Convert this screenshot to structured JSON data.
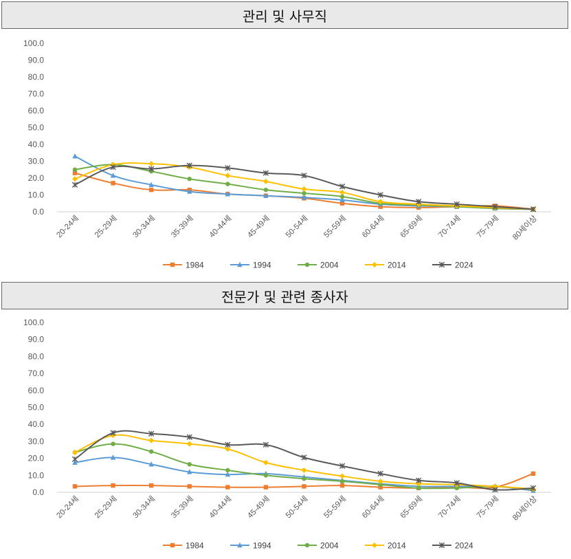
{
  "chart_data": [
    {
      "type": "line",
      "title": "관리 및 사무직",
      "categories": [
        "20-24세",
        "25-29세",
        "30-34세",
        "35-39세",
        "40-44세",
        "45-49세",
        "50-54세",
        "55-59세",
        "60-64세",
        "65-69세",
        "70-74세",
        "75-79세",
        "80세이상"
      ],
      "y_ticks": [
        "0.0",
        "10.0",
        "20.0",
        "30.0",
        "40.0",
        "50.0",
        "60.0",
        "70.0",
        "80.0",
        "90.0",
        "100.0"
      ],
      "ylim": [
        0,
        100
      ],
      "legend_position": "bottom",
      "series": [
        {
          "name": "1984",
          "color": "#ED7D31",
          "marker": "square",
          "values": [
            23,
            17,
            13,
            13,
            10.5,
            9.5,
            8,
            5,
            3,
            2.5,
            3,
            3.5,
            1.5
          ]
        },
        {
          "name": "1994",
          "color": "#5B9BD5",
          "marker": "triangle",
          "values": [
            33,
            21.5,
            16,
            12,
            10.5,
            9.5,
            8.5,
            7,
            4.5,
            3.5,
            3,
            2,
            1.5
          ]
        },
        {
          "name": "2004",
          "color": "#70AD47",
          "marker": "circle",
          "values": [
            25,
            28,
            24,
            19.5,
            16.5,
            13,
            11,
            9,
            5,
            4,
            3,
            2,
            1.5
          ]
        },
        {
          "name": "2014",
          "color": "#FFC000",
          "marker": "diamond",
          "values": [
            19.5,
            28,
            28.5,
            26.5,
            21.5,
            18,
            13.5,
            11.5,
            6,
            4.5,
            3.5,
            2.5,
            1.5
          ]
        },
        {
          "name": "2024",
          "color": "#595959",
          "marker": "star",
          "values": [
            16,
            26.5,
            25.5,
            27.5,
            26,
            23,
            21.5,
            15,
            10,
            6,
            4.5,
            3,
            1.5
          ]
        }
      ]
    },
    {
      "type": "line",
      "title": "전문가 및 관련 종사자",
      "categories": [
        "20-24세",
        "25-29세",
        "30-34세",
        "35-39세",
        "40-44세",
        "45-49세",
        "50-54세",
        "55-59세",
        "60-64세",
        "65-69세",
        "70-74세",
        "75-79세",
        "80세이상"
      ],
      "y_ticks": [
        "0.0",
        "10.0",
        "20.0",
        "30.0",
        "40.0",
        "50.0",
        "60.0",
        "70.0",
        "80.0",
        "90.0",
        "100.0"
      ],
      "ylim": [
        0,
        100
      ],
      "legend_position": "bottom",
      "series": [
        {
          "name": "1984",
          "color": "#ED7D31",
          "marker": "square",
          "values": [
            3.5,
            4,
            4,
            3.5,
            3,
            3,
            3.5,
            4,
            3,
            2.5,
            3,
            3,
            11
          ]
        },
        {
          "name": "1994",
          "color": "#5B9BD5",
          "marker": "triangle",
          "values": [
            17.5,
            20.5,
            16.5,
            12,
            10.5,
            11,
            9,
            7,
            5,
            3.5,
            3.5,
            3.5,
            1
          ]
        },
        {
          "name": "2004",
          "color": "#70AD47",
          "marker": "circle",
          "values": [
            23.5,
            28.5,
            24,
            16.5,
            13,
            10,
            8,
            6.5,
            4.5,
            2.5,
            2.5,
            3.5,
            1.5
          ]
        },
        {
          "name": "2014",
          "color": "#FFC000",
          "marker": "diamond",
          "values": [
            23.5,
            33.5,
            30.5,
            28.5,
            25.5,
            17.5,
            13,
            9.5,
            6.5,
            5,
            4.5,
            3.5,
            2
          ]
        },
        {
          "name": "2024",
          "color": "#595959",
          "marker": "star",
          "values": [
            19.5,
            35,
            34.5,
            32.5,
            28,
            28,
            20.5,
            15.5,
            11,
            7,
            5.5,
            1.5,
            2.5
          ]
        }
      ]
    }
  ]
}
